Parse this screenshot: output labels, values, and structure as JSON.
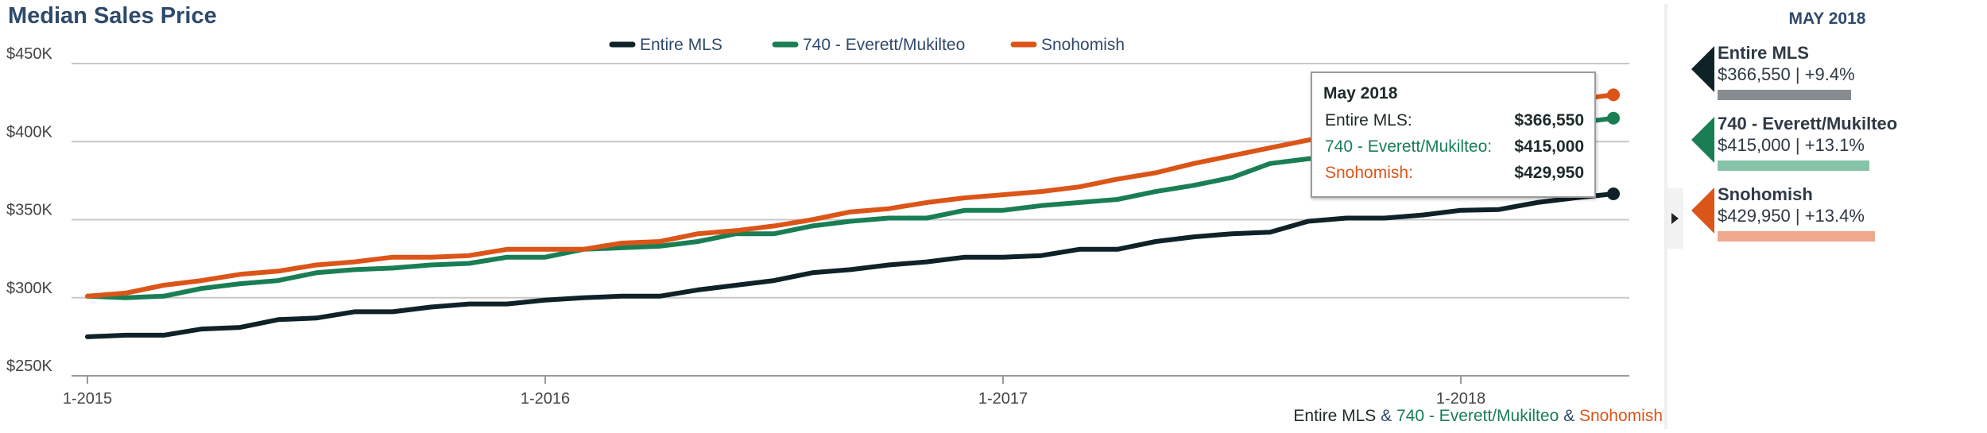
{
  "title": "Median Sales Price",
  "legend": [
    {
      "name": "Entire MLS",
      "color": "#0f2228"
    },
    {
      "name": "740 - Everett/Mukilteo",
      "color": "#1a7e55"
    },
    {
      "name": "Snohomish",
      "color": "#dc5518"
    }
  ],
  "chart_data": {
    "type": "line",
    "title": "Median Sales Price",
    "x_start": "2015-01",
    "x_step": "1 month",
    "xticks": [
      "1-2015",
      "1-2016",
      "1-2017",
      "1-2018"
    ],
    "yticks": [
      "$250K",
      "$300K",
      "$350K",
      "$400K",
      "$450K"
    ],
    "ylim": [
      250000,
      450000
    ],
    "grid": true,
    "legend_position": "top-center",
    "series": [
      {
        "name": "Entire MLS",
        "color": "#0f2228",
        "values": [
          275000,
          276000,
          276000,
          280000,
          281000,
          286000,
          287000,
          291000,
          291000,
          294000,
          296000,
          296000,
          298500,
          300000,
          301000,
          301000,
          305000,
          308000,
          311000,
          316000,
          318000,
          321000,
          323000,
          326000,
          326000,
          327000,
          331000,
          331000,
          336000,
          339000,
          341000,
          342000,
          349000,
          351000,
          351000,
          353000,
          356000,
          356500,
          361000,
          364000,
          366550
        ]
      },
      {
        "name": "740 - Everett/Mukilteo",
        "color": "#1a7e55",
        "values": [
          301000,
          300000,
          301000,
          306000,
          309000,
          311000,
          316000,
          318000,
          319000,
          321000,
          322000,
          326000,
          326000,
          331000,
          332000,
          333000,
          336000,
          341000,
          341000,
          346000,
          349000,
          351000,
          351000,
          356000,
          356000,
          359000,
          361000,
          363000,
          368000,
          372000,
          377000,
          386000,
          389000,
          391000,
          396000,
          399000,
          403000,
          406000,
          409000,
          412000,
          415000
        ]
      },
      {
        "name": "Snohomish",
        "color": "#dc5518",
        "values": [
          301000,
          303000,
          308000,
          311000,
          315000,
          317000,
          321000,
          323000,
          326000,
          326000,
          327000,
          331000,
          331000,
          331000,
          335000,
          336000,
          341000,
          343000,
          346000,
          350000,
          355000,
          357000,
          361000,
          364000,
          366000,
          368000,
          371000,
          376000,
          380000,
          386000,
          391000,
          396000,
          401000,
          405000,
          409000,
          413000,
          417000,
          420000,
          424000,
          427000,
          429950
        ]
      }
    ],
    "highlight_label": "May 2018"
  },
  "tooltip": {
    "title": "May 2018",
    "rows": [
      {
        "label": "Entire MLS:",
        "value": "$366,550"
      },
      {
        "label": "740 - Everett/Mukilteo:",
        "value": "$415,000"
      },
      {
        "label": "Snohomish:",
        "value": "$429,950"
      }
    ]
  },
  "footer_legend": {
    "a": "Entire MLS",
    "sep1": " & ",
    "b": "740 - Everett/Mukilteo",
    "sep2": " & ",
    "c": "Snohomish"
  },
  "side_panel": {
    "date": "MAY 2018",
    "cards": [
      {
        "name": "Entire MLS",
        "value": "$366,550 | +9.4%",
        "arrow_color": "#0f2228",
        "bar_color": "#868c8f",
        "bar_level": 0.366
      },
      {
        "name": "740 - Everett/Mukilteo",
        "value": "$415,000 | +13.1%",
        "arrow_color": "#1a7e55",
        "bar_color": "#86c3a8",
        "bar_level": 0.415
      },
      {
        "name": "Snohomish",
        "value": "$429,950 | +13.4%",
        "arrow_color": "#dc5518",
        "bar_color": "#eea88c",
        "bar_level": 0.43
      }
    ]
  }
}
